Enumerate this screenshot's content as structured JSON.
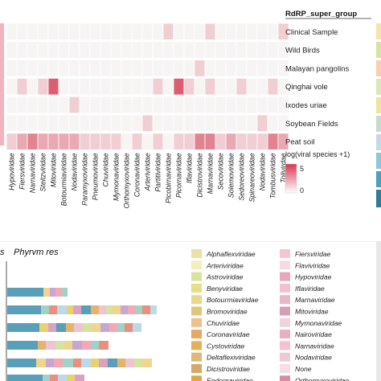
{
  "chart_data": [
    {
      "type": "heatmap",
      "title": "",
      "row_annotation_header": "RdRP_super_group",
      "rows": [
        "Clinical Sample",
        "Wild Birds",
        "Malayan pangolins",
        "Qinghai vole",
        "Ixodes uriae",
        "Soybean Fields",
        "Peat soil"
      ],
      "columns": [
        "Hypoviridae",
        "Fiersviridae",
        "Narnaviridae",
        "Steitzviridae",
        "Mitoviridae",
        "Botourmiaviridae",
        "Nodaviridae",
        "Paramyxoviridae",
        "Pneumoviridae",
        "Chuviridae",
        "Mymonaviridae",
        "Orthomyxoviridae",
        "Coronaviridae",
        "Arteriviridae",
        "Partitiviridae",
        "Picobirnaviridae",
        "Picornaviridae",
        "Iflaviridae",
        "Dicistroviridae",
        "Marnaviridae",
        "Secoviridae",
        "Solemoviridae",
        "Sedoreoviridae",
        "Spinareoviridae",
        "Nodaviridae",
        "Tombusviridae",
        "Tolivirdae"
      ],
      "values": [
        [
          0,
          0,
          0,
          0,
          0,
          0,
          0,
          0,
          0,
          0,
          0,
          0,
          0,
          0,
          0,
          1,
          0,
          0,
          0,
          1,
          0,
          0,
          0,
          0,
          0,
          0,
          1
        ],
        [
          0,
          0,
          0,
          0,
          0,
          0,
          0,
          0,
          0,
          0,
          0,
          0,
          0,
          0,
          0,
          0,
          0,
          0,
          0,
          0,
          0,
          0,
          0,
          0,
          0,
          0,
          0
        ],
        [
          0,
          0,
          0,
          0,
          0,
          0,
          0,
          0,
          0,
          0,
          0,
          0,
          0,
          0,
          0,
          0,
          0,
          0,
          1,
          0,
          0,
          0,
          0,
          0,
          0,
          0,
          0
        ],
        [
          0,
          1,
          0,
          1,
          4,
          0,
          0,
          0,
          0,
          0,
          0,
          0,
          0,
          0,
          1,
          0,
          4,
          1,
          0,
          1,
          0,
          0,
          1,
          0,
          0,
          1,
          0
        ],
        [
          0,
          0,
          0,
          0,
          0,
          0,
          1,
          0,
          0,
          0,
          0,
          0,
          0,
          0,
          0,
          0,
          0,
          0,
          0,
          0,
          0,
          0,
          0,
          0,
          0,
          0,
          0
        ],
        [
          0,
          0,
          0,
          0,
          0,
          0,
          0,
          0,
          0,
          0,
          0,
          0,
          0,
          1,
          0,
          0,
          0,
          0,
          0,
          0,
          0,
          0,
          0,
          0,
          1,
          0,
          0
        ],
        [
          1,
          2,
          3,
          2,
          2,
          2,
          2,
          1,
          1,
          1,
          1,
          0,
          1,
          0,
          1,
          0,
          1,
          1,
          3,
          3,
          1,
          2,
          1,
          1,
          1,
          3,
          2
        ]
      ],
      "value_range": [
        0,
        5
      ],
      "colorbar_title": "log(viral species +1)",
      "colorbar_ticks": [
        "5",
        "0"
      ]
    },
    {
      "type": "bar",
      "title": "Phyrvm res",
      "left_title": "s",
      "legend": {
        "column1": [
          "Alphaflexviridae",
          "Arteriviridae",
          "Astroviridae",
          "Benyviridae",
          "Botourmiaviridae",
          "Bromoviridae",
          "Chuviridae",
          "Coronaviridae",
          "Cystoviridae",
          "Deltaflexiviridae",
          "Dicistroviridae",
          "Endornaviridae"
        ],
        "column2": [
          "Fiersviridae",
          "Flaviviridae",
          "Hypoviridae",
          "Iflaviridae",
          "Marnaviridae",
          "Mitoviridae",
          "Mymonaviridae",
          "Nairoviridae",
          "Narnaviridae",
          "Nodaviridae",
          "None",
          "Orthomyxoviridae"
        ]
      }
    }
  ]
}
